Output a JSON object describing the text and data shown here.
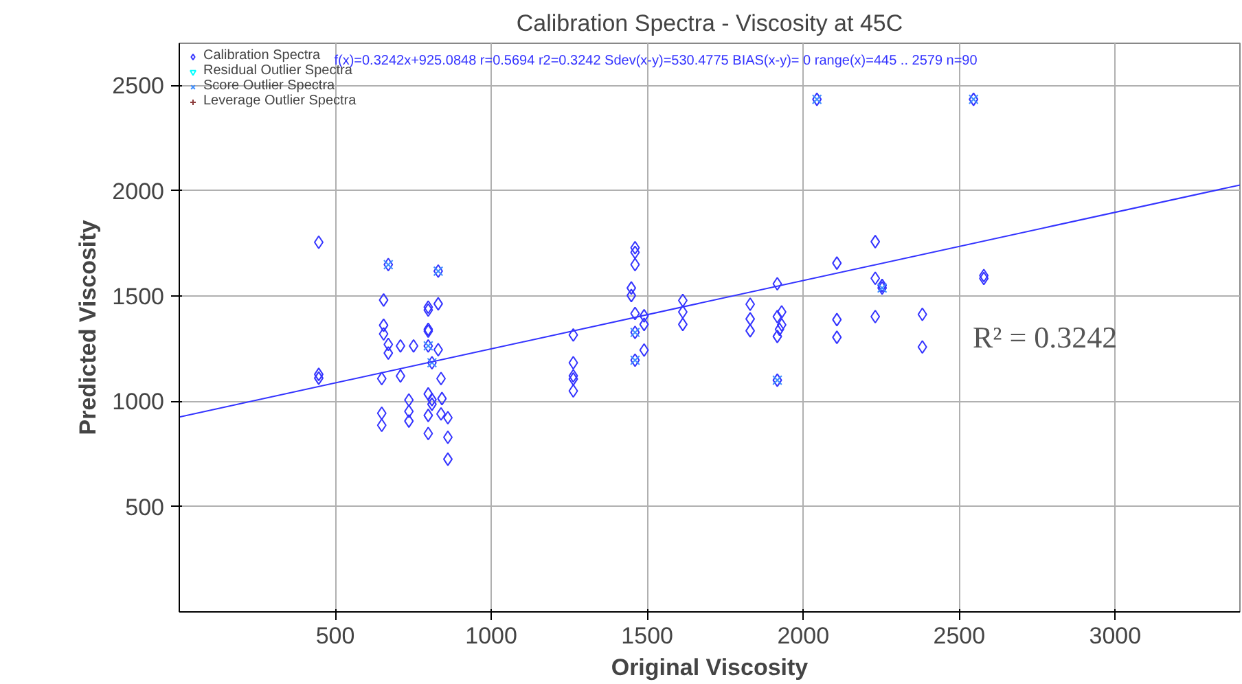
{
  "chart_data": {
    "type": "scatter",
    "title": "Calibration Spectra - Viscosity at 45C",
    "xlabel": "Original Viscosity",
    "ylabel": "Predicted Viscosity",
    "xlim": [
      0,
      3400
    ],
    "ylim": [
      0,
      2700
    ],
    "xticks": [
      500,
      1000,
      1500,
      2000,
      2500,
      3000
    ],
    "yticks": [
      500,
      1000,
      1500,
      2000,
      2500
    ],
    "grid": true,
    "legend": "top left",
    "annotations": [
      "f(x)=0.3242x+925.0848  r=0.5694  r2=0.3242  Sdev(x-y)=530.4775  BIAS(x-y)=  0  range(x)=445 .. 2579  n=90",
      "R² = 0.3242"
    ],
    "series": [
      {
        "name": "Calibration Spectra",
        "color": "#3333ff",
        "marker": "diamond",
        "x": [
          447,
          447,
          447,
          670,
          655,
          655,
          655,
          670,
          670,
          649,
          649,
          649,
          709,
          709,
          751,
          736,
          736,
          736,
          798,
          798,
          798,
          798,
          798,
          810,
          830,
          830,
          830,
          839,
          798,
          810,
          810,
          842,
          798,
          839,
          861,
          798,
          861,
          861,
          1263,
          1263,
          1263,
          1263,
          1263,
          1461,
          1461,
          1461,
          1449,
          1449,
          1461,
          1461,
          1490,
          1490,
          1490,
          1461,
          1614,
          1614,
          1614,
          2108,
          2108,
          2108,
          2231,
          2231,
          2231,
          2253,
          2253,
          2382,
          2382,
          2579,
          2579,
          1917,
          1917,
          1931,
          1931,
          1924,
          1917,
          1917,
          1830,
          1830,
          1830,
          2044,
          2546
        ],
        "values": [
          1755,
          1128,
          1110,
          1649,
          1481,
          1361,
          1320,
          1270,
          1229,
          1108,
          943,
          886,
          1263,
          1120,
          1263,
          1006,
          952,
          906,
          1447,
          1433,
          1342,
          1333,
          1263,
          1183,
          1618,
          1463,
          1245,
          1108,
          1035,
          1008,
          986,
          1013,
          933,
          940,
          922,
          847,
          829,
          725,
          1315,
          1183,
          1121,
          1106,
          1049,
          1729,
          1707,
          1649,
          1538,
          1502,
          1417,
          1327,
          1406,
          1365,
          1243,
          1195,
          1479,
          1424,
          1365,
          1656,
          1388,
          1304,
          1758,
          1584,
          1402,
          1538,
          1550,
          1413,
          1258,
          1597,
          1583,
          1558,
          1402,
          1424,
          1363,
          1342,
          1308,
          1100,
          1461,
          1391,
          1335,
          2434,
          2434
        ]
      },
      {
        "name": "Residual Outlier Spectra",
        "color": "#00ffff",
        "marker": "triangle"
      },
      {
        "name": "Score Outlier Spectra",
        "color": "#3f8fff",
        "marker": "x",
        "x": [
          670,
          830,
          798,
          810,
          1461,
          1461,
          2044,
          2546,
          2253,
          1917
        ],
        "values": [
          1649,
          1618,
          1263,
          1183,
          1327,
          1195,
          2434,
          2434,
          1538,
          1100
        ]
      },
      {
        "name": "Leverage Outlier Spectra",
        "color": "#8b3a3a",
        "marker": "cross"
      },
      {
        "type": "line",
        "color": "#3333ff",
        "x": [
          0,
          3400
        ],
        "values": [
          925,
          2027
        ]
      }
    ]
  }
}
